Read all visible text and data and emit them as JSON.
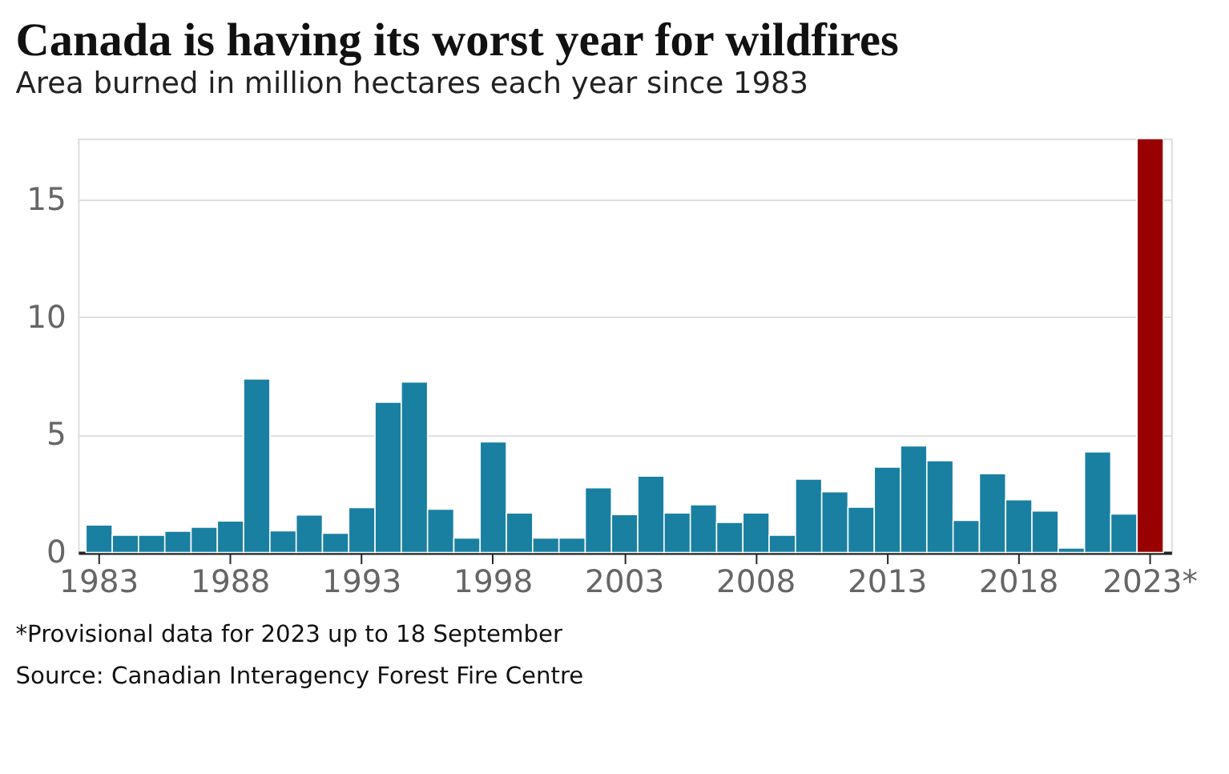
{
  "chart_data": {
    "type": "bar",
    "title": "Canada is having its worst year for wildfires",
    "subtitle": "Area burned in million hectares each year since 1983",
    "categories": [
      "1983",
      null,
      null,
      null,
      null,
      "1988",
      null,
      null,
      null,
      null,
      "1993",
      null,
      null,
      null,
      null,
      "1998",
      null,
      null,
      null,
      null,
      "2003",
      null,
      null,
      null,
      null,
      "2008",
      null,
      null,
      null,
      null,
      "2013",
      null,
      null,
      null,
      null,
      "2018",
      null,
      null,
      null,
      null,
      "2023*"
    ],
    "values": [
      1.17,
      0.73,
      0.73,
      0.9,
      1.07,
      1.34,
      7.38,
      0.92,
      1.59,
      0.82,
      1.91,
      6.39,
      7.25,
      1.84,
      0.61,
      4.7,
      1.68,
      0.61,
      0.61,
      2.75,
      1.61,
      3.25,
      1.68,
      2.03,
      1.28,
      1.68,
      0.73,
      3.12,
      2.58,
      1.93,
      3.63,
      4.53,
      3.9,
      1.36,
      3.35,
      2.24,
      1.76,
      0.19,
      4.28,
      1.64,
      17.6
    ],
    "colors": [
      "#1a80a2",
      "#1a80a2",
      "#1a80a2",
      "#1a80a2",
      "#1a80a2",
      "#1a80a2",
      "#1a80a2",
      "#1a80a2",
      "#1a80a2",
      "#1a80a2",
      "#1a80a2",
      "#1a80a2",
      "#1a80a2",
      "#1a80a2",
      "#1a80a2",
      "#1a80a2",
      "#1a80a2",
      "#1a80a2",
      "#1a80a2",
      "#1a80a2",
      "#1a80a2",
      "#1a80a2",
      "#1a80a2",
      "#1a80a2",
      "#1a80a2",
      "#1a80a2",
      "#1a80a2",
      "#1a80a2",
      "#1a80a2",
      "#1a80a2",
      "#1a80a2",
      "#1a80a2",
      "#1a80a2",
      "#1a80a2",
      "#1a80a2",
      "#1a80a2",
      "#1a80a2",
      "#1a80a2",
      "#1a80a2",
      "#1a80a2",
      "#990000"
    ],
    "ylim": [
      0,
      17.6
    ],
    "yticks": [
      0,
      5,
      10,
      15
    ],
    "grid": "y",
    "annotations": [
      "*Provisional data for 2023 up to 18 September",
      "Source: Canadian Interagency Forest Fire Centre"
    ]
  }
}
